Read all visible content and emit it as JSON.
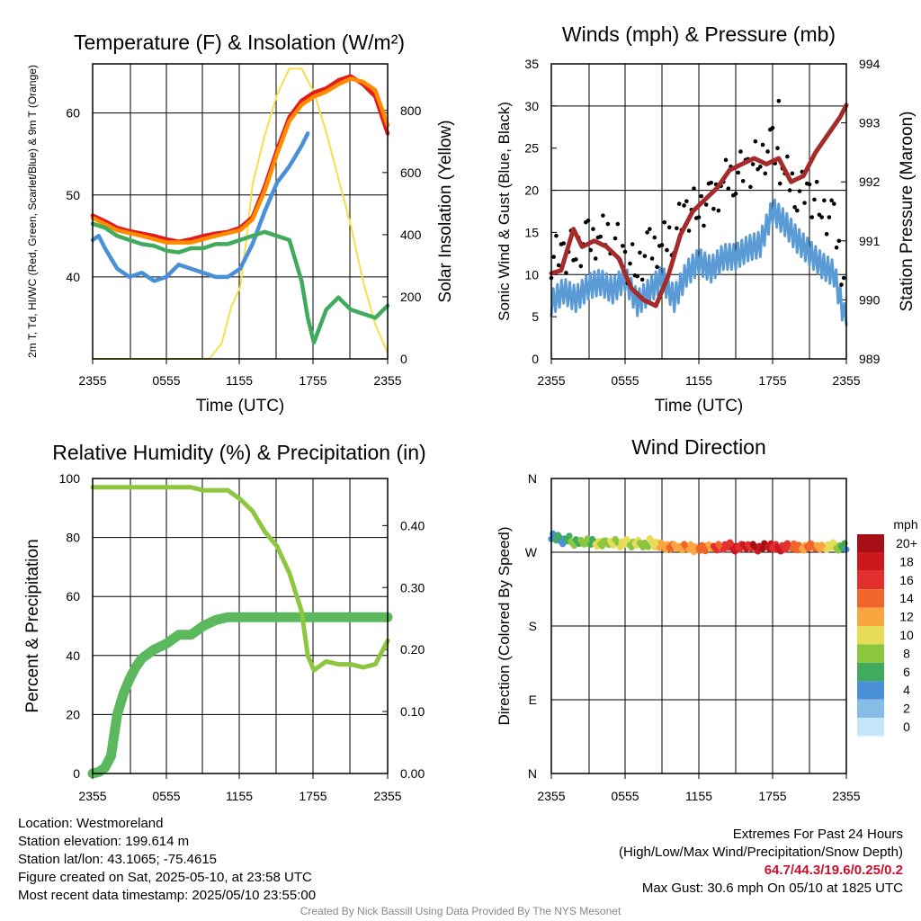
{
  "chart_data": [
    {
      "type": "line",
      "title": "Temperature (F) & Insolation (W/m²)",
      "xlabel": "Time (UTC)",
      "ylabel": "2m T, Td, HI/WC (Red, Green, Scarlet/Blue) & 9m T (Orange)",
      "ylabel2": "Solar Insolation (Yellow)",
      "x_ticks": [
        "2355",
        "0555",
        "1155",
        "1755",
        "2355"
      ],
      "ylim": [
        30,
        66
      ],
      "y_ticks": [
        40,
        50,
        60
      ],
      "ylim2": [
        0,
        950
      ],
      "y2_ticks": [
        0,
        200,
        400,
        600,
        800
      ],
      "series": [
        {
          "color": "#e41a1c",
          "t": [
            0,
            1,
            2,
            3,
            4,
            5,
            6,
            7,
            8,
            9,
            10,
            11,
            12,
            13,
            14,
            15,
            16,
            17,
            18,
            19,
            20,
            21,
            22,
            23,
            24
          ],
          "values": [
            47.5,
            46.8,
            46.0,
            45.6,
            45.3,
            45.0,
            44.6,
            44.3,
            44.6,
            45.0,
            45.3,
            45.5,
            46.0,
            47.3,
            51.0,
            55.5,
            59.5,
            61.5,
            62.5,
            63.0,
            64.0,
            64.5,
            63.5,
            62.0,
            57.5
          ]
        },
        {
          "color": "#ff8c00",
          "t": [
            0,
            2,
            4,
            6,
            8,
            10,
            12,
            13,
            14,
            15,
            16,
            17,
            18,
            19,
            20,
            21,
            22,
            23,
            24
          ],
          "values": [
            47.2,
            45.7,
            45.0,
            44.2,
            44.2,
            45.0,
            45.7,
            47.0,
            50.5,
            55.0,
            59.0,
            61.0,
            62.0,
            62.6,
            63.5,
            64.2,
            63.8,
            62.8,
            58.5
          ]
        },
        {
          "color": "#4a90d9",
          "t": [
            0,
            0.5,
            1,
            2,
            3,
            4,
            5,
            6,
            7,
            8,
            9,
            10,
            11,
            12,
            13,
            14,
            15,
            16,
            17,
            17.5
          ],
          "values": [
            44.5,
            45.0,
            43.5,
            41.0,
            40.0,
            40.5,
            39.5,
            40.0,
            41.5,
            41.0,
            40.5,
            40.0,
            40.0,
            41.0,
            44.0,
            48.0,
            51.5,
            53.5,
            56.0,
            57.5
          ]
        },
        {
          "color": "#41ab5d",
          "t": [
            0,
            1,
            2,
            3,
            4,
            5,
            6,
            7,
            8,
            9,
            10,
            11,
            12,
            13,
            14,
            15,
            16,
            17,
            17.5,
            18,
            19,
            20,
            21,
            22,
            23,
            24
          ],
          "values": [
            46.5,
            46.0,
            45.0,
            44.5,
            44.0,
            43.8,
            43.2,
            43.0,
            43.5,
            43.5,
            44.0,
            44.0,
            44.5,
            45.0,
            45.5,
            45.0,
            44.5,
            39.5,
            35.0,
            32.0,
            36.0,
            37.5,
            36.0,
            35.5,
            35.0,
            36.5
          ]
        }
      ],
      "insolation": {
        "color": "#f4e04d",
        "t": [
          0,
          9.5,
          10.5,
          11.3,
          12.0,
          12.5,
          13.0,
          14.0,
          15.0,
          16.0,
          17.0,
          18.0,
          19.0,
          20.0,
          21.0,
          22.0,
          23.0,
          24.0
        ],
        "values": [
          0,
          0,
          50,
          170,
          230,
          380,
          560,
          720,
          850,
          935,
          935,
          860,
          730,
          580,
          430,
          250,
          110,
          20
        ]
      }
    },
    {
      "type": "line",
      "title": "Winds (mph) & Pressure (mb)",
      "xlabel": "Time (UTC)",
      "ylabel": "Sonic Wind & Gust (Blue, Black)",
      "ylabel2": "Station Pressure (Maroon)",
      "x_ticks": [
        "2355",
        "0555",
        "1155",
        "1755",
        "2355"
      ],
      "ylim": [
        0,
        35
      ],
      "y_ticks": [
        0,
        5,
        10,
        15,
        20,
        25,
        30,
        35
      ],
      "ylim2": [
        989,
        994
      ],
      "y2_ticks": [
        989,
        990,
        991,
        992,
        993,
        994
      ],
      "wind": {
        "color": "#5b9bd5",
        "t": [
          0,
          1,
          2,
          3,
          4,
          5,
          6,
          7,
          8,
          9,
          10,
          11,
          12,
          13,
          14,
          15,
          16,
          17,
          18,
          19,
          20,
          21,
          22,
          23,
          24
        ],
        "values": [
          6.5,
          8.0,
          7.0,
          8.5,
          9.0,
          8.0,
          9.5,
          6.5,
          8.0,
          9.5,
          7.0,
          10.0,
          11.5,
          10.5,
          12.0,
          12.0,
          13.0,
          13.5,
          17.5,
          16.0,
          14.0,
          12.5,
          11.0,
          10.0,
          4.0
        ]
      },
      "gust": {
        "color": "#000000",
        "t": [
          0,
          1,
          2,
          3,
          4,
          5,
          6,
          7,
          8,
          9,
          10,
          11,
          12,
          13,
          14,
          15,
          16,
          17,
          18,
          19,
          20,
          21,
          22,
          23,
          24
        ],
        "values": [
          12.0,
          12.5,
          13.0,
          14.0,
          14.5,
          15.0,
          11.5,
          11.0,
          13.0,
          13.5,
          15.0,
          17.5,
          18.0,
          18.5,
          21.0,
          22.0,
          22.5,
          24.0,
          25.0,
          22.0,
          20.0,
          19.5,
          18.0,
          16.0,
          8.0
        ]
      },
      "max_gust": {
        "t": 18.5,
        "value": 30.6
      },
      "pressure": {
        "color": "#a52a2a",
        "t": [
          0,
          0.8,
          1.8,
          2.5,
          3.5,
          4.5,
          5.5,
          6.5,
          7.5,
          8.5,
          9.5,
          10.5,
          11.5,
          12.5,
          13.5,
          14.5,
          15.5,
          16.5,
          17.5,
          18.5,
          19.5,
          20.5,
          21.5,
          22.5,
          23.5,
          24
        ],
        "values": [
          990.45,
          990.5,
          991.2,
          990.9,
          991.0,
          990.9,
          990.7,
          990.2,
          990.0,
          989.9,
          990.4,
          991.1,
          991.5,
          991.7,
          991.9,
          992.2,
          992.3,
          992.4,
          992.3,
          992.4,
          992.0,
          992.1,
          992.5,
          992.8,
          993.1,
          993.3
        ]
      }
    },
    {
      "type": "line",
      "title": "Relative Humidity (%) & Precipitation (in)",
      "xlabel": "",
      "ylabel": "Percent & Precipitation",
      "x_ticks": [
        "2355",
        "0555",
        "1155",
        "1755",
        "2355"
      ],
      "ylim": [
        0,
        100
      ],
      "y_ticks": [
        0,
        20,
        40,
        60,
        80,
        100
      ],
      "ylim2": [
        0,
        0.476
      ],
      "y2_ticks": [
        "0.00",
        "0.10",
        "0.20",
        "0.30",
        "0.40"
      ],
      "humidity": {
        "color": "#8dc63f",
        "t": [
          0,
          2,
          4,
          6,
          8,
          9,
          10,
          11,
          12,
          13,
          14,
          15,
          16,
          17,
          17.5,
          18,
          19,
          20,
          21,
          22,
          23,
          24
        ],
        "values": [
          97,
          97,
          97,
          97,
          97,
          96,
          96,
          96,
          93,
          89,
          82,
          77,
          68,
          55,
          40,
          35,
          38,
          37,
          37,
          36,
          37,
          45
        ]
      },
      "precip": {
        "color": "#5bb85d",
        "t": [
          0,
          0.5,
          1,
          1.5,
          2,
          2.5,
          3,
          3.5,
          4,
          5,
          6,
          7,
          8,
          9,
          10,
          11,
          12,
          24
        ],
        "values": [
          0,
          0.5,
          2,
          6,
          20,
          27,
          32,
          36,
          39,
          42,
          44,
          47,
          47,
          50,
          52,
          53,
          53,
          53
        ]
      }
    },
    {
      "type": "scatter",
      "title": "Wind Direction",
      "xlabel": "",
      "ylabel": "Direction (Colored By Speed)",
      "x_ticks": [
        "2355",
        "0555",
        "1155",
        "1755",
        "2355"
      ],
      "y_ticks": [
        "N",
        "E",
        "S",
        "W",
        "N"
      ],
      "legend_title": "mph",
      "legend_labels": [
        "20+",
        "18",
        "16",
        "14",
        "12",
        "10",
        "8",
        "6",
        "4",
        "2",
        "0"
      ],
      "legend_colors": [
        "#a50f15",
        "#cb181d",
        "#e3302f",
        "#f0662a",
        "#f9a640",
        "#e7dc58",
        "#8cc63f",
        "#41ab5d",
        "#4a90d9",
        "#85bde6",
        "#c6e6f9"
      ],
      "points": {
        "t": [
          0,
          0.4,
          0.8,
          1.2,
          1.6,
          2.0,
          2.4,
          2.8,
          3.2,
          3.6,
          4.0,
          4.4,
          4.8,
          5.2,
          5.6,
          6.0,
          6.4,
          6.8,
          7.2,
          7.6,
          8.0,
          8.4,
          8.8,
          9.2,
          9.6,
          10.0,
          10.4,
          10.8,
          11.2,
          11.6,
          12.0,
          12.4,
          12.8,
          13.2,
          13.6,
          14.0,
          14.4,
          14.8,
          15.2,
          15.6,
          16.0,
          16.4,
          16.8,
          17.2,
          17.6,
          18.0,
          18.4,
          18.8,
          19.2,
          19.6,
          20.0,
          20.4,
          20.8,
          21.2,
          21.6,
          22.0,
          22.4,
          22.8,
          23.2,
          23.6,
          24.0
        ],
        "dir": [
          290,
          287,
          284,
          286,
          282,
          283,
          281,
          284,
          282,
          281,
          280,
          283,
          281,
          282,
          280,
          282,
          280,
          281,
          280,
          279,
          283,
          280,
          278,
          277,
          276,
          278,
          275,
          276,
          277,
          273,
          276,
          274,
          278,
          275,
          276,
          277,
          278,
          275,
          276,
          278,
          277,
          276,
          275,
          277,
          278,
          276,
          275,
          276,
          277,
          278,
          275,
          276,
          277,
          278,
          276,
          275,
          277,
          278,
          276,
          277,
          272
        ],
        "speed": [
          3,
          5,
          4,
          6,
          7,
          6,
          7,
          8,
          6,
          9,
          8,
          7,
          9,
          8,
          9,
          10,
          8,
          9,
          7,
          8,
          9,
          10,
          11,
          12,
          13,
          11,
          12,
          13,
          12,
          11,
          14,
          13,
          12,
          15,
          14,
          16,
          15,
          17,
          16,
          18,
          16,
          19,
          17,
          20,
          18,
          16,
          17,
          15,
          16,
          14,
          13,
          12,
          14,
          13,
          12,
          11,
          10,
          9,
          8,
          6,
          4
        ]
      }
    }
  ],
  "info": {
    "location": "Location: Westmoreland",
    "elevation": "Station elevation: 199.614 m",
    "latlon": "Station lat/lon: 43.1065; -75.4615",
    "created": "Figure created on Sat, 2025-05-10, at 23:58 UTC",
    "recent": "Most recent data timestamp: 2025/05/10 23:55:00"
  },
  "extremes": {
    "title": "Extremes For Past 24 Hours",
    "subtitle": "(High/Low/Max Wind/Precipitation/Snow Depth)",
    "values": "64.7/44.3/19.6/0.25/0.2",
    "max_gust": "Max Gust: 30.6 mph On 05/10 at 1825 UTC"
  },
  "footer": "Created By Nick Bassill Using Data Provided By The NYS Mesonet"
}
